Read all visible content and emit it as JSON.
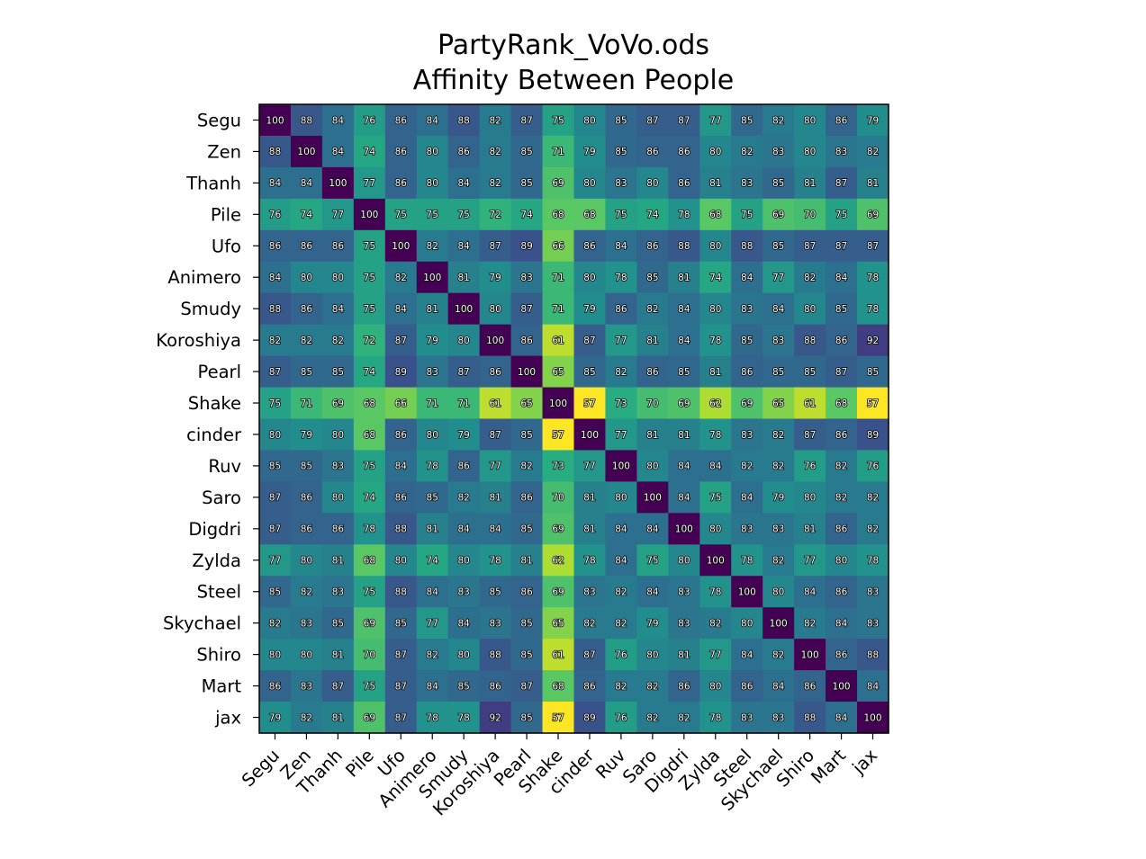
{
  "chart_data": {
    "type": "heatmap",
    "title": "PartyRank_VoVo.ods",
    "subtitle": "Affinity Between People",
    "labels": [
      "Segu",
      "Zen",
      "Thanh",
      "Pile",
      "Ufo",
      "Animero",
      "Smudy",
      "Koroshiya",
      "Pearl",
      "Shake",
      "cinder",
      "Ruv",
      "Saro",
      "Digdri",
      "Zylda",
      "Steel",
      "Skychael",
      "Shiro",
      "Mart",
      "jax"
    ],
    "colormap": "viridis-reversed",
    "value_range": [
      57,
      100
    ],
    "cell_labels_shown": true,
    "values": [
      [
        100,
        88,
        84,
        76,
        86,
        84,
        88,
        82,
        87,
        75,
        80,
        85,
        87,
        87,
        77,
        85,
        82,
        80,
        86,
        79
      ],
      [
        88,
        100,
        84,
        74,
        86,
        80,
        86,
        82,
        85,
        71,
        79,
        85,
        86,
        86,
        80,
        82,
        83,
        80,
        83,
        82
      ],
      [
        84,
        84,
        100,
        77,
        86,
        80,
        84,
        82,
        85,
        69,
        80,
        83,
        80,
        86,
        81,
        83,
        85,
        81,
        87,
        81
      ],
      [
        76,
        74,
        77,
        100,
        75,
        75,
        75,
        72,
        74,
        68,
        68,
        75,
        74,
        78,
        68,
        75,
        69,
        70,
        75,
        69
      ],
      [
        86,
        86,
        86,
        75,
        100,
        82,
        84,
        87,
        89,
        66,
        86,
        84,
        86,
        88,
        80,
        88,
        85,
        87,
        87,
        87
      ],
      [
        84,
        80,
        80,
        75,
        82,
        100,
        81,
        79,
        83,
        71,
        80,
        78,
        85,
        81,
        74,
        84,
        77,
        82,
        84,
        78
      ],
      [
        88,
        86,
        84,
        75,
        84,
        81,
        100,
        80,
        87,
        71,
        79,
        86,
        82,
        84,
        80,
        83,
        84,
        80,
        85,
        78
      ],
      [
        82,
        82,
        82,
        72,
        87,
        79,
        80,
        100,
        86,
        61,
        87,
        77,
        81,
        84,
        78,
        85,
        83,
        88,
        86,
        92
      ],
      [
        87,
        85,
        85,
        74,
        89,
        83,
        87,
        86,
        100,
        65,
        85,
        82,
        86,
        85,
        81,
        86,
        85,
        85,
        87,
        85
      ],
      [
        75,
        71,
        69,
        68,
        66,
        71,
        71,
        61,
        65,
        100,
        57,
        73,
        70,
        69,
        62,
        69,
        65,
        61,
        68,
        57
      ],
      [
        80,
        79,
        80,
        68,
        86,
        80,
        79,
        87,
        85,
        57,
        100,
        77,
        81,
        81,
        78,
        83,
        82,
        87,
        86,
        89
      ],
      [
        85,
        85,
        83,
        75,
        84,
        78,
        86,
        77,
        82,
        73,
        77,
        100,
        80,
        84,
        84,
        82,
        82,
        76,
        82,
        76
      ],
      [
        87,
        86,
        80,
        74,
        86,
        85,
        82,
        81,
        86,
        70,
        81,
        80,
        100,
        84,
        75,
        84,
        79,
        80,
        82,
        82
      ],
      [
        87,
        86,
        86,
        78,
        88,
        81,
        84,
        84,
        85,
        69,
        81,
        84,
        84,
        100,
        80,
        83,
        83,
        81,
        86,
        82
      ],
      [
        77,
        80,
        81,
        68,
        80,
        74,
        80,
        78,
        81,
        62,
        78,
        84,
        75,
        80,
        100,
        78,
        82,
        77,
        80,
        78
      ],
      [
        85,
        82,
        83,
        75,
        88,
        84,
        83,
        85,
        86,
        69,
        83,
        82,
        84,
        83,
        78,
        100,
        80,
        84,
        86,
        83
      ],
      [
        82,
        83,
        85,
        69,
        85,
        77,
        84,
        83,
        85,
        65,
        82,
        82,
        79,
        83,
        82,
        80,
        100,
        82,
        84,
        83
      ],
      [
        80,
        80,
        81,
        70,
        87,
        82,
        80,
        88,
        85,
        61,
        87,
        76,
        80,
        81,
        77,
        84,
        82,
        100,
        86,
        88
      ],
      [
        86,
        83,
        87,
        75,
        87,
        84,
        85,
        86,
        87,
        68,
        86,
        82,
        82,
        86,
        80,
        86,
        84,
        86,
        100,
        84
      ],
      [
        79,
        82,
        81,
        69,
        87,
        78,
        78,
        92,
        85,
        57,
        89,
        76,
        82,
        82,
        78,
        83,
        83,
        88,
        84,
        100
      ]
    ]
  }
}
